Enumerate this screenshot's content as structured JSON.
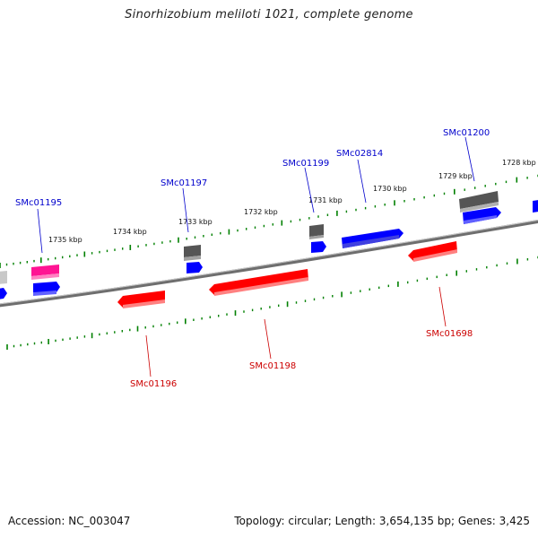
{
  "title": "Sinorhizobium meliloti 1021, complete genome",
  "footer": {
    "accession": "Accession: NC_003047",
    "stats": "Topology: circular; Length: 3,654,135 bp; Genes: 3,425"
  },
  "colors": {
    "forward_gene": "#0000ff",
    "reverse_gene": "#ff0000",
    "pseudo_gene": "#555555",
    "rna_gene": "#ff1493",
    "tick": "#008000",
    "backbone": "#808080",
    "forward_label": "#0000cc",
    "reverse_label": "#cc0000"
  },
  "scale_labels": [
    "1735 kbp",
    "1734 kbp",
    "1733 kbp",
    "1732 kbp",
    "1731 kbp",
    "1730 kbp",
    "1729 kbp",
    "1728 kbp"
  ],
  "gene_labels": [
    {
      "text": "SMc01195",
      "strand": "forward"
    },
    {
      "text": "SMc01197",
      "strand": "forward"
    },
    {
      "text": "SMc01199",
      "strand": "forward"
    },
    {
      "text": "SMc02814",
      "strand": "forward"
    },
    {
      "text": "SMc01200",
      "strand": "forward"
    },
    {
      "text": "SMc01196",
      "strand": "reverse"
    },
    {
      "text": "SMc01198",
      "strand": "reverse"
    },
    {
      "text": "SMc01698",
      "strand": "reverse"
    }
  ]
}
